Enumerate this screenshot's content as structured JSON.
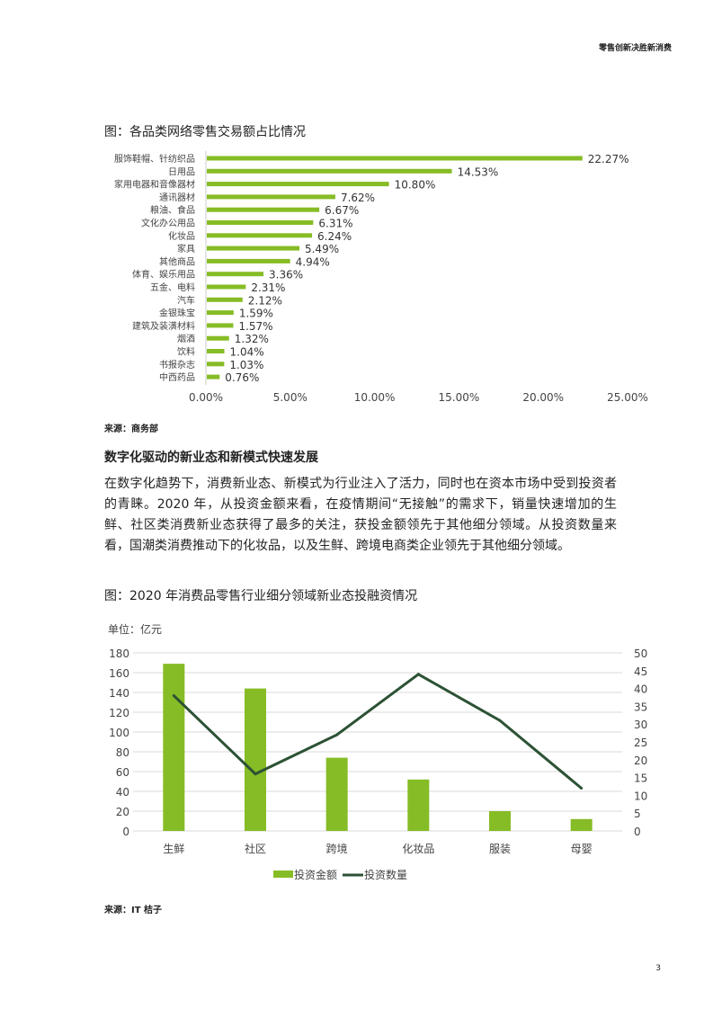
{
  "header": {
    "title": "零售创新决胜新消费"
  },
  "figure1": {
    "title": "图：各品类网络零售交易额占比情况",
    "source": "来源：商务部"
  },
  "section": {
    "heading": "数字化驱动的新业态和新模式快速发展",
    "paragraph": "在数字化趋势下，消费新业态、新模式为行业注入了活力，同时也在资本市场中受到投资者的青睐。2020 年，从投资金额来看，在疫情期间“无接触”的需求下，销量快速增加的生鲜、社区类消费新业态获得了最多的关注，获投金额领先于其他细分领域。从投资数量来看，国潮类消费推动下的化妆品，以及生鲜、跨境电商类企业领先于其他细分领域。"
  },
  "figure2": {
    "title": "图：2020 年消费品零售行业细分领域新业态投融资情况",
    "source": "来源：IT 桔子"
  },
  "page_number": "3",
  "chart_data": [
    {
      "type": "bar",
      "orientation": "horizontal",
      "categories": [
        "服饰鞋帽、针纺织品",
        "日用品",
        "家用电器和音像器材",
        "通讯器材",
        "粮油、食品",
        "文化办公用品",
        "化妆品",
        "家具",
        "其他商品",
        "体育、娱乐用品",
        "五金、电料",
        "汽车",
        "金银珠宝",
        "建筑及装潢材料",
        "烟酒",
        "饮料",
        "书报杂志",
        "中西药品"
      ],
      "values": [
        22.27,
        14.53,
        10.8,
        7.62,
        6.67,
        6.31,
        6.24,
        5.49,
        4.94,
        3.36,
        2.31,
        2.12,
        1.59,
        1.57,
        1.32,
        1.04,
        1.03,
        0.76
      ],
      "data_labels": [
        "22.27%",
        "14.53%",
        "10.80%",
        "7.62%",
        "6.67%",
        "6.31%",
        "6.24%",
        "5.49%",
        "4.94%",
        "3.36%",
        "2.31%",
        "2.12%",
        "1.59%",
        "1.57%",
        "1.32%",
        "1.04%",
        "1.03%",
        "0.76%"
      ],
      "xlim": [
        0,
        25
      ],
      "x_ticks": [
        "0.00%",
        "5.00%",
        "10.00%",
        "15.00%",
        "20.00%",
        "25.00%"
      ],
      "grid": false,
      "color": "#86bc25"
    },
    {
      "type": "bar+line",
      "unit_label": "单位：亿元",
      "categories": [
        "生鲜",
        "社区",
        "跨境",
        "化妆品",
        "服装",
        "母婴"
      ],
      "series": [
        {
          "name": "投资金额",
          "type": "bar",
          "axis": "left",
          "values": [
            169,
            144,
            74,
            52,
            20,
            12
          ],
          "color": "#86bc25"
        },
        {
          "name": "投资数量",
          "type": "line",
          "axis": "right",
          "values": [
            38,
            16,
            27,
            44,
            31,
            12
          ],
          "color": "#2c5234"
        }
      ],
      "ylim_left": [
        0,
        180
      ],
      "y_ticks_left": [
        "0",
        "20",
        "40",
        "60",
        "80",
        "100",
        "120",
        "140",
        "160",
        "180"
      ],
      "ylim_right": [
        0,
        50
      ],
      "y_ticks_right": [
        "0",
        "5",
        "10",
        "15",
        "20",
        "25",
        "30",
        "35",
        "40",
        "45",
        "50"
      ],
      "grid": true,
      "legend": "bottom"
    }
  ]
}
